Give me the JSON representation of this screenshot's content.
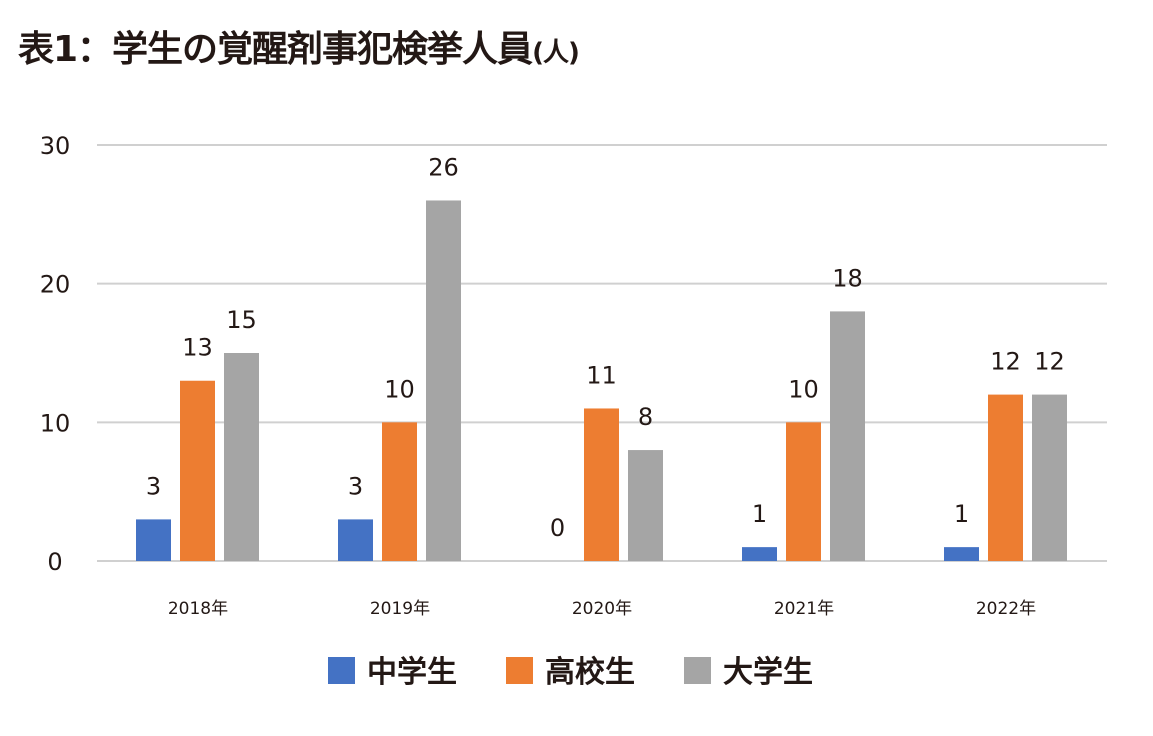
{
  "title": "表1：学生の覚醒剤事犯検挙人員",
  "unit": "(人)",
  "chart_data": {
    "type": "bar",
    "title": "表1：学生の覚醒剤事犯検挙人員(人)",
    "categories": [
      "2018年",
      "2019年",
      "2020年",
      "2021年",
      "2022年"
    ],
    "series": [
      {
        "name": "中学生",
        "values": [
          3,
          3,
          0,
          1,
          1
        ],
        "color": "#4472c4"
      },
      {
        "name": "高校生",
        "values": [
          13,
          10,
          11,
          10,
          12
        ],
        "color": "#ed7d31"
      },
      {
        "name": "大学生",
        "values": [
          15,
          26,
          8,
          18,
          12
        ],
        "color": "#a5a5a5"
      }
    ],
    "ylim": [
      0,
      30
    ],
    "yticks": [
      0,
      10,
      20,
      30
    ],
    "grid": true,
    "legend": "bottom",
    "xlabel": "",
    "ylabel": ""
  }
}
